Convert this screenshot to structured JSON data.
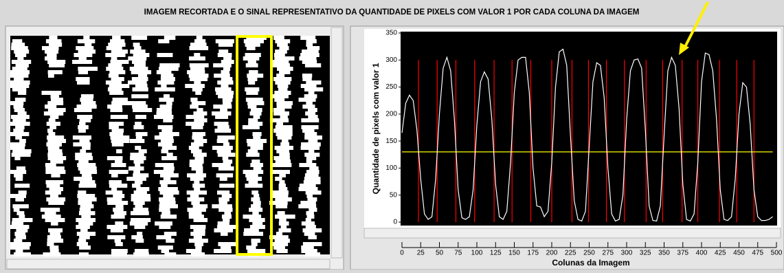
{
  "header": {
    "title": "IMAGEM RECORTADA E O SINAL REPRESENTATIVO DA QUANTIDADE DE PIXELS COM VALOR 1 POR CADA COLUNA DA IMAGEM"
  },
  "chart_data": {
    "type": "line",
    "x_label": "Colunas da Imagem",
    "y_label": "Quantidade de pixels com valor 1",
    "x": [
      0,
      5,
      10,
      15,
      20,
      25,
      30,
      35,
      40,
      45,
      50,
      55,
      60,
      65,
      70,
      75,
      80,
      85,
      90,
      95,
      100,
      105,
      110,
      115,
      120,
      125,
      130,
      135,
      140,
      145,
      150,
      155,
      160,
      165,
      170,
      175,
      180,
      185,
      190,
      195,
      200,
      205,
      210,
      215,
      220,
      225,
      230,
      235,
      240,
      245,
      250,
      255,
      260,
      265,
      270,
      275,
      280,
      285,
      290,
      295,
      300,
      305,
      310,
      315,
      320,
      325,
      330,
      335,
      340,
      345,
      350,
      355,
      360,
      365,
      370,
      375,
      380,
      385,
      390,
      395,
      400,
      405,
      410,
      415,
      420,
      425,
      430,
      435,
      440,
      445,
      450,
      455,
      460,
      465,
      470,
      475,
      480,
      485,
      490,
      495
    ],
    "series": [
      {
        "color": "#ffffff",
        "values": [
          165,
          220,
          235,
          225,
          170,
          80,
          15,
          5,
          10,
          80,
          200,
          285,
          305,
          280,
          190,
          60,
          8,
          5,
          10,
          60,
          180,
          260,
          278,
          265,
          190,
          70,
          10,
          5,
          20,
          110,
          240,
          300,
          305,
          305,
          240,
          100,
          30,
          28,
          10,
          20,
          110,
          250,
          315,
          320,
          290,
          160,
          40,
          5,
          2,
          20,
          140,
          260,
          295,
          290,
          230,
          100,
          15,
          2,
          5,
          50,
          190,
          280,
          300,
          302,
          285,
          170,
          30,
          3,
          2,
          30,
          160,
          280,
          305,
          290,
          210,
          70,
          5,
          2,
          15,
          110,
          260,
          313,
          310,
          280,
          190,
          60,
          5,
          3,
          10,
          80,
          200,
          258,
          250,
          180,
          60,
          10,
          3,
          3,
          5,
          10
        ]
      }
    ],
    "threshold": 130,
    "threshold_color": "#ffff00",
    "red_lines": [
      22,
      47,
      72,
      97,
      123,
      147,
      172,
      200,
      227,
      249,
      273,
      297,
      326,
      348,
      374,
      395,
      424,
      447,
      470
    ],
    "red_color": "#ff0000",
    "xlim": [
      0,
      500
    ],
    "ylim": [
      0,
      350
    ],
    "xticks": [
      0,
      25,
      50,
      75,
      100,
      125,
      150,
      175,
      200,
      225,
      250,
      275,
      300,
      325,
      350,
      375,
      400,
      425,
      450,
      475,
      500
    ],
    "yticks": [
      0,
      50,
      100,
      150,
      200,
      250,
      300,
      350
    ]
  }
}
